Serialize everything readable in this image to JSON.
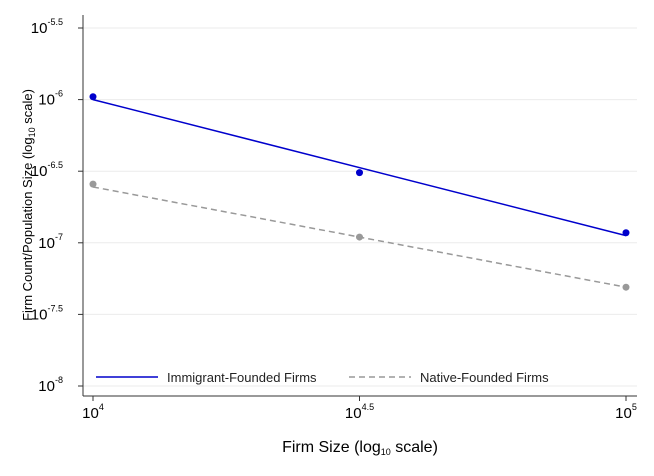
{
  "chart_data": {
    "type": "line",
    "xlabel": "Firm Size (log10 scale)",
    "ylabel": "Firm Count/Population Size (log10 scale)",
    "xlabel_parts": {
      "prefix": "Firm Size (log",
      "sub": "10",
      "suffix": " scale)"
    },
    "ylabel_parts": {
      "prefix": "Firm Count/Population Size (log",
      "sub": "10",
      "suffix": " scale)"
    },
    "x_scale": "log10",
    "y_scale": "log10",
    "xlim_log10": [
      4,
      5
    ],
    "ylim_log10": [
      -8,
      -5.5
    ],
    "x_ticks": [
      {
        "log10": 4,
        "base": "10",
        "exp": "4"
      },
      {
        "log10": 4.5,
        "base": "10",
        "exp": "4.5"
      },
      {
        "log10": 5,
        "base": "10",
        "exp": "5"
      }
    ],
    "y_ticks": [
      {
        "log10": -5.5,
        "base": "10",
        "exp": "-5.5"
      },
      {
        "log10": -6,
        "base": "10",
        "exp": "-6"
      },
      {
        "log10": -6.5,
        "base": "10",
        "exp": "-6.5"
      },
      {
        "log10": -7,
        "base": "10",
        "exp": "-7"
      },
      {
        "log10": -7.5,
        "base": "10",
        "exp": "-7.5"
      },
      {
        "log10": -8,
        "base": "10",
        "exp": "-8"
      }
    ],
    "grid": "horizontal",
    "legend_position": "bottom",
    "series": [
      {
        "name": "Immigrant-Founded Firms",
        "color": "#0000cc",
        "dash": "solid",
        "points_log10": [
          [
            4,
            -5.98
          ],
          [
            4.5,
            -6.51
          ],
          [
            5,
            -6.93
          ]
        ],
        "fit_log10": [
          [
            4,
            -6.0
          ],
          [
            5,
            -6.95
          ]
        ]
      },
      {
        "name": "Native-Founded Firms",
        "color": "#999999",
        "dash": "dashed",
        "points_log10": [
          [
            4,
            -6.59
          ],
          [
            4.5,
            -6.96
          ],
          [
            5,
            -7.31
          ]
        ],
        "fit_log10": [
          [
            4,
            -6.61
          ],
          [
            5,
            -7.31
          ]
        ]
      }
    ]
  }
}
